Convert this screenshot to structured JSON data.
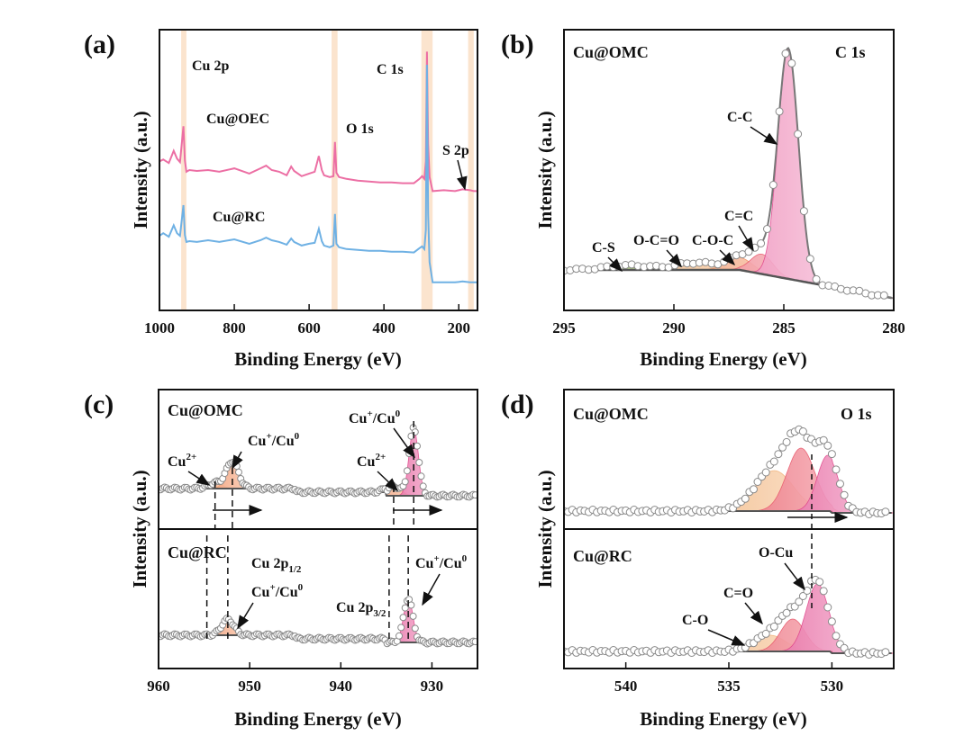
{
  "chart_data": [
    {
      "panel": "(a)",
      "type": "line",
      "xlabel": "Binding Energy (eV)",
      "ylabel": "Intensity (a.u.)",
      "xlim": [
        1000,
        150
      ],
      "x_reversed": true,
      "x_ticks": [
        "1000",
        "800",
        "600",
        "400",
        "200"
      ],
      "series": [
        {
          "name": "Cu@OEC",
          "color": "#ec6fa4",
          "x": [
            1000,
            990,
            975,
            962,
            953,
            945,
            936,
            932,
            928,
            920,
            900,
            870,
            840,
            800,
            760,
            730,
            715,
            700,
            680,
            660,
            648,
            640,
            620,
            600,
            585,
            574,
            566,
            560,
            545,
            535,
            531,
            527,
            520,
            500,
            470,
            440,
            410,
            380,
            350,
            320,
            305,
            298,
            292,
            288,
            285,
            282,
            278,
            270,
            240,
            210,
            190,
            170,
            160,
            150
          ],
          "y": [
            170,
            172,
            168,
            182,
            173,
            169,
            210,
            171,
            158,
            160,
            159,
            160,
            158,
            162,
            156,
            162,
            165,
            160,
            158,
            154,
            164,
            159,
            153,
            156,
            158,
            176,
            160,
            154,
            152,
            153,
            192,
            157,
            152,
            150,
            148,
            147,
            146,
            146,
            145,
            145,
            150,
            153,
            150,
            170,
            295,
            190,
            152,
            136,
            137,
            136,
            138,
            137,
            136,
            136
          ]
        },
        {
          "name": "Cu@RC",
          "color": "#6fb1e4",
          "x": [
            1000,
            990,
            975,
            962,
            953,
            945,
            936,
            932,
            928,
            920,
            900,
            870,
            840,
            800,
            760,
            730,
            715,
            700,
            680,
            660,
            648,
            640,
            620,
            600,
            585,
            574,
            566,
            560,
            545,
            535,
            531,
            527,
            520,
            500,
            470,
            440,
            410,
            380,
            350,
            320,
            305,
            298,
            292,
            288,
            285,
            282,
            278,
            270,
            240,
            210,
            190,
            170,
            160,
            150
          ],
          "y": [
            85,
            88,
            84,
            97,
            88,
            85,
            120,
            86,
            78,
            79,
            78,
            80,
            78,
            81,
            76,
            80,
            83,
            80,
            78,
            75,
            82,
            78,
            74,
            76,
            77,
            93,
            79,
            74,
            72,
            74,
            110,
            76,
            72,
            70,
            69,
            68,
            68,
            67,
            67,
            66,
            71,
            73,
            70,
            92,
            280,
            110,
            55,
            32,
            32,
            32,
            33,
            32,
            32,
            32
          ]
        }
      ],
      "annotations": [
        "Cu 2p",
        "O 1s",
        "C 1s",
        "S 2p"
      ],
      "shaded_regions": [
        [
          942,
          928
        ],
        [
          540,
          524
        ],
        [
          300,
          270
        ],
        [
          175,
          160
        ]
      ]
    },
    {
      "panel": "(b)",
      "type": "line",
      "xlabel": "Binding Energy (eV)",
      "ylabel": "Intensity (a.u.)",
      "xlim": [
        295,
        280
      ],
      "x_reversed": true,
      "x_ticks": [
        "295",
        "290",
        "285",
        "280"
      ],
      "sample": "Cu@OMC",
      "region": "C 1s",
      "components": [
        {
          "name": "C-C",
          "center": 284.8,
          "height": 255,
          "fwhm": 1.1,
          "color": "#e0438a"
        },
        {
          "name": "C=C",
          "center": 286.0,
          "height": 22,
          "fwhm": 1.2,
          "color": "#e8566a"
        },
        {
          "name": "C-O-C",
          "center": 287.0,
          "height": 14,
          "fwhm": 1.4,
          "color": "#f08a5d"
        },
        {
          "name": "O-C=O",
          "center": 289.0,
          "height": 8,
          "fwhm": 2.0,
          "color": "#f2b27a"
        },
        {
          "name": "C-S",
          "center": 292.0,
          "height": 5,
          "fwhm": 2.5,
          "color": "#a6cf6a"
        }
      ]
    },
    {
      "panel": "(c)",
      "type": "line",
      "xlabel": "Binding Energy (eV)",
      "ylabel": "Intensity (a.u.)",
      "xlim": [
        960,
        925
      ],
      "x_reversed": true,
      "x_ticks": [
        "960",
        "950",
        "940",
        "930"
      ],
      "spectra": [
        {
          "sample": "Cu@OMC",
          "components": [
            {
              "name": "Cu2+",
              "center": 953.8,
              "height": 8,
              "fwhm": 1.8
            },
            {
              "name": "Cu+/Cu0",
              "center": 951.9,
              "height": 40,
              "fwhm": 1.6
            },
            {
              "name": "Cu2+",
              "center": 934.2,
              "height": 14,
              "fwhm": 1.8
            },
            {
              "name": "Cu+/Cu0",
              "center": 932.0,
              "height": 100,
              "fwhm": 1.2
            }
          ]
        },
        {
          "sample": "Cu@RC",
          "components": [
            {
              "name": "Cu+/Cu0",
              "center": 952.4,
              "height": 25,
              "fwhm": 1.6
            },
            {
              "name": "Cu+/Cu0",
              "center": 932.6,
              "height": 70,
              "fwhm": 1.2
            }
          ]
        }
      ],
      "annotations": [
        "Cu 2p1/2",
        "Cu 2p3/2"
      ],
      "dashed_lines": [
        954.7,
        952.4,
        934.7,
        932.6,
        953.8,
        951.9,
        934.2,
        932.0
      ]
    },
    {
      "panel": "(d)",
      "type": "line",
      "xlabel": "Binding Energy (eV)",
      "ylabel": "Intensity (a.u.)",
      "xlim": [
        543,
        527
      ],
      "x_reversed": true,
      "x_ticks": [
        "540",
        "535",
        "530"
      ],
      "region": "O 1s",
      "spectra": [
        {
          "sample": "Cu@OMC",
          "components": [
            {
              "name": "C-O",
              "center": 532.8,
              "height": 45,
              "fwhm": 2.2
            },
            {
              "name": "C=O",
              "center": 531.5,
              "height": 70,
              "fwhm": 1.6
            },
            {
              "name": "O-Cu",
              "center": 530.2,
              "height": 62,
              "fwhm": 1.2
            }
          ]
        },
        {
          "sample": "Cu@RC",
          "components": [
            {
              "name": "C-O",
              "center": 533.0,
              "height": 18,
              "fwhm": 1.8
            },
            {
              "name": "C=O",
              "center": 531.9,
              "height": 36,
              "fwhm": 1.4
            },
            {
              "name": "O-Cu",
              "center": 530.7,
              "height": 75,
              "fwhm": 1.3
            }
          ]
        }
      ]
    }
  ],
  "labels": {
    "panel_a": "(a)",
    "panel_b": "(b)",
    "panel_c": "(c)",
    "panel_d": "(d)",
    "xlabel": "Binding Energy (eV)",
    "ylabel": "Intensity (a.u.)",
    "a_cu2p": "Cu 2p",
    "a_o1s": "O 1s",
    "a_c1s": "C 1s",
    "a_s2p": "S 2p",
    "a_oec": "Cu@OEC",
    "a_rc": "Cu@RC",
    "b_sample": "Cu@OMC",
    "b_region": "C 1s",
    "b_cc": "C-C",
    "b_c2c": "C=C",
    "b_coc": "C-O-C",
    "b_occo": "O-C=O",
    "b_cs": "C-S",
    "c_omc": "Cu@OMC",
    "c_rc": "Cu@RC",
    "cu2plus": "Cu",
    "cu2plus_sup": "2+",
    "cuplus": "Cu",
    "cuplus_sup": "+",
    "cuslash": "/Cu",
    "cuzero_sup": "0",
    "c_2p12": "Cu 2p",
    "c_2p12_sub": "1/2",
    "c_2p32": "Cu 2p",
    "c_2p32_sub": "3/2",
    "d_omc": "Cu@OMC",
    "d_region": "O 1s",
    "d_rc": "Cu@RC",
    "d_ocu": "O-Cu",
    "d_co2": "C=O",
    "d_co": "C-O"
  },
  "colors": {
    "pink": "#ec6fa4",
    "blue": "#6fb1e4",
    "marker": "#8a8a8a",
    "shade": "#f7cda6"
  }
}
